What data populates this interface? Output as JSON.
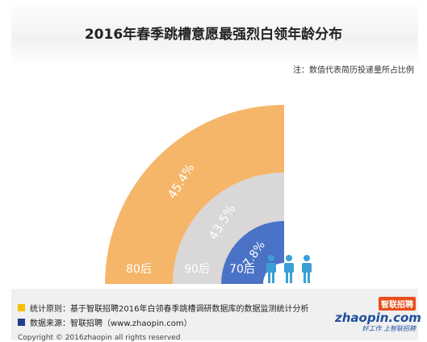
{
  "title": "2016年春季跳槽意愿最强烈白领年龄分布",
  "note": "注：数值代表简历投递量所占比例",
  "chart_data": {
    "type": "pie",
    "title": "2016年春季跳槽意愿最强烈白领年龄分布",
    "categories": [
      "80后",
      "90后",
      "70后"
    ],
    "values": [
      45.4,
      43.5,
      7.8
    ],
    "value_labels": [
      "45.4%",
      "43.5%",
      "7.8%"
    ],
    "colors": [
      "#F5B66A",
      "#D9D7D8",
      "#4A72C6"
    ]
  },
  "footer": {
    "method_label": "统计原则：基于智联招聘2016年白领春季跳槽调研数据库的数据监测统计分析",
    "source_label": "数据来源：智联招聘（www.zhaopin.com）",
    "copyright": "Copyright © 2016zhaopin all rights reserved",
    "method_color": "#F2C200",
    "source_color": "#1F3E8C"
  },
  "logo": {
    "cn": "智联招聘",
    "en": "zhaopin.com",
    "tagline": "好工作 上智联招聘"
  },
  "icons": [
    "person-icon",
    "person-icon",
    "person-icon"
  ]
}
